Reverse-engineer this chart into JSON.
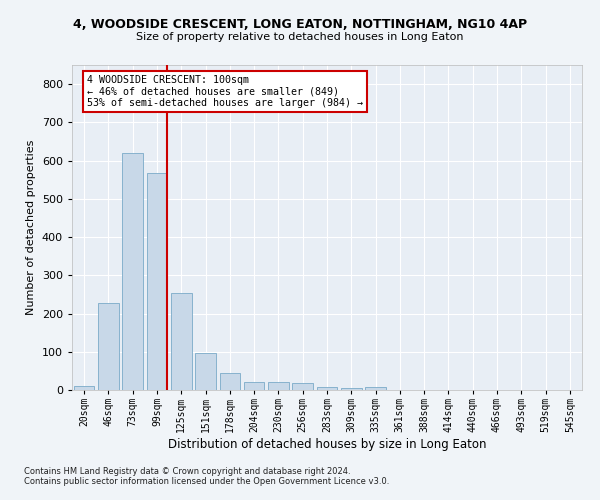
{
  "title": "4, WOODSIDE CRESCENT, LONG EATON, NOTTINGHAM, NG10 4AP",
  "subtitle": "Size of property relative to detached houses in Long Eaton",
  "xlabel": "Distribution of detached houses by size in Long Eaton",
  "ylabel": "Number of detached properties",
  "bar_color": "#c8d8e8",
  "bar_edgecolor": "#7aaac8",
  "background_color": "#e8eef5",
  "grid_color": "#ffffff",
  "categories": [
    "20sqm",
    "46sqm",
    "73sqm",
    "99sqm",
    "125sqm",
    "151sqm",
    "178sqm",
    "204sqm",
    "230sqm",
    "256sqm",
    "283sqm",
    "309sqm",
    "335sqm",
    "361sqm",
    "388sqm",
    "414sqm",
    "440sqm",
    "466sqm",
    "493sqm",
    "519sqm",
    "545sqm"
  ],
  "values": [
    10,
    228,
    620,
    568,
    254,
    96,
    44,
    20,
    20,
    18,
    9,
    5,
    9,
    0,
    0,
    0,
    0,
    0,
    0,
    0,
    0
  ],
  "ylim": [
    0,
    850
  ],
  "yticks": [
    0,
    100,
    200,
    300,
    400,
    500,
    600,
    700,
    800
  ],
  "redline_bin_index": 3,
  "annotation_line1": "4 WOODSIDE CRESCENT: 100sqm",
  "annotation_line2": "← 46% of detached houses are smaller (849)",
  "annotation_line3": "53% of semi-detached houses are larger (984) →",
  "annotation_box_color": "#ffffff",
  "annotation_box_edgecolor": "#cc0000",
  "redline_color": "#cc0000",
  "footer1": "Contains HM Land Registry data © Crown copyright and database right 2024.",
  "footer2": "Contains public sector information licensed under the Open Government Licence v3.0."
}
